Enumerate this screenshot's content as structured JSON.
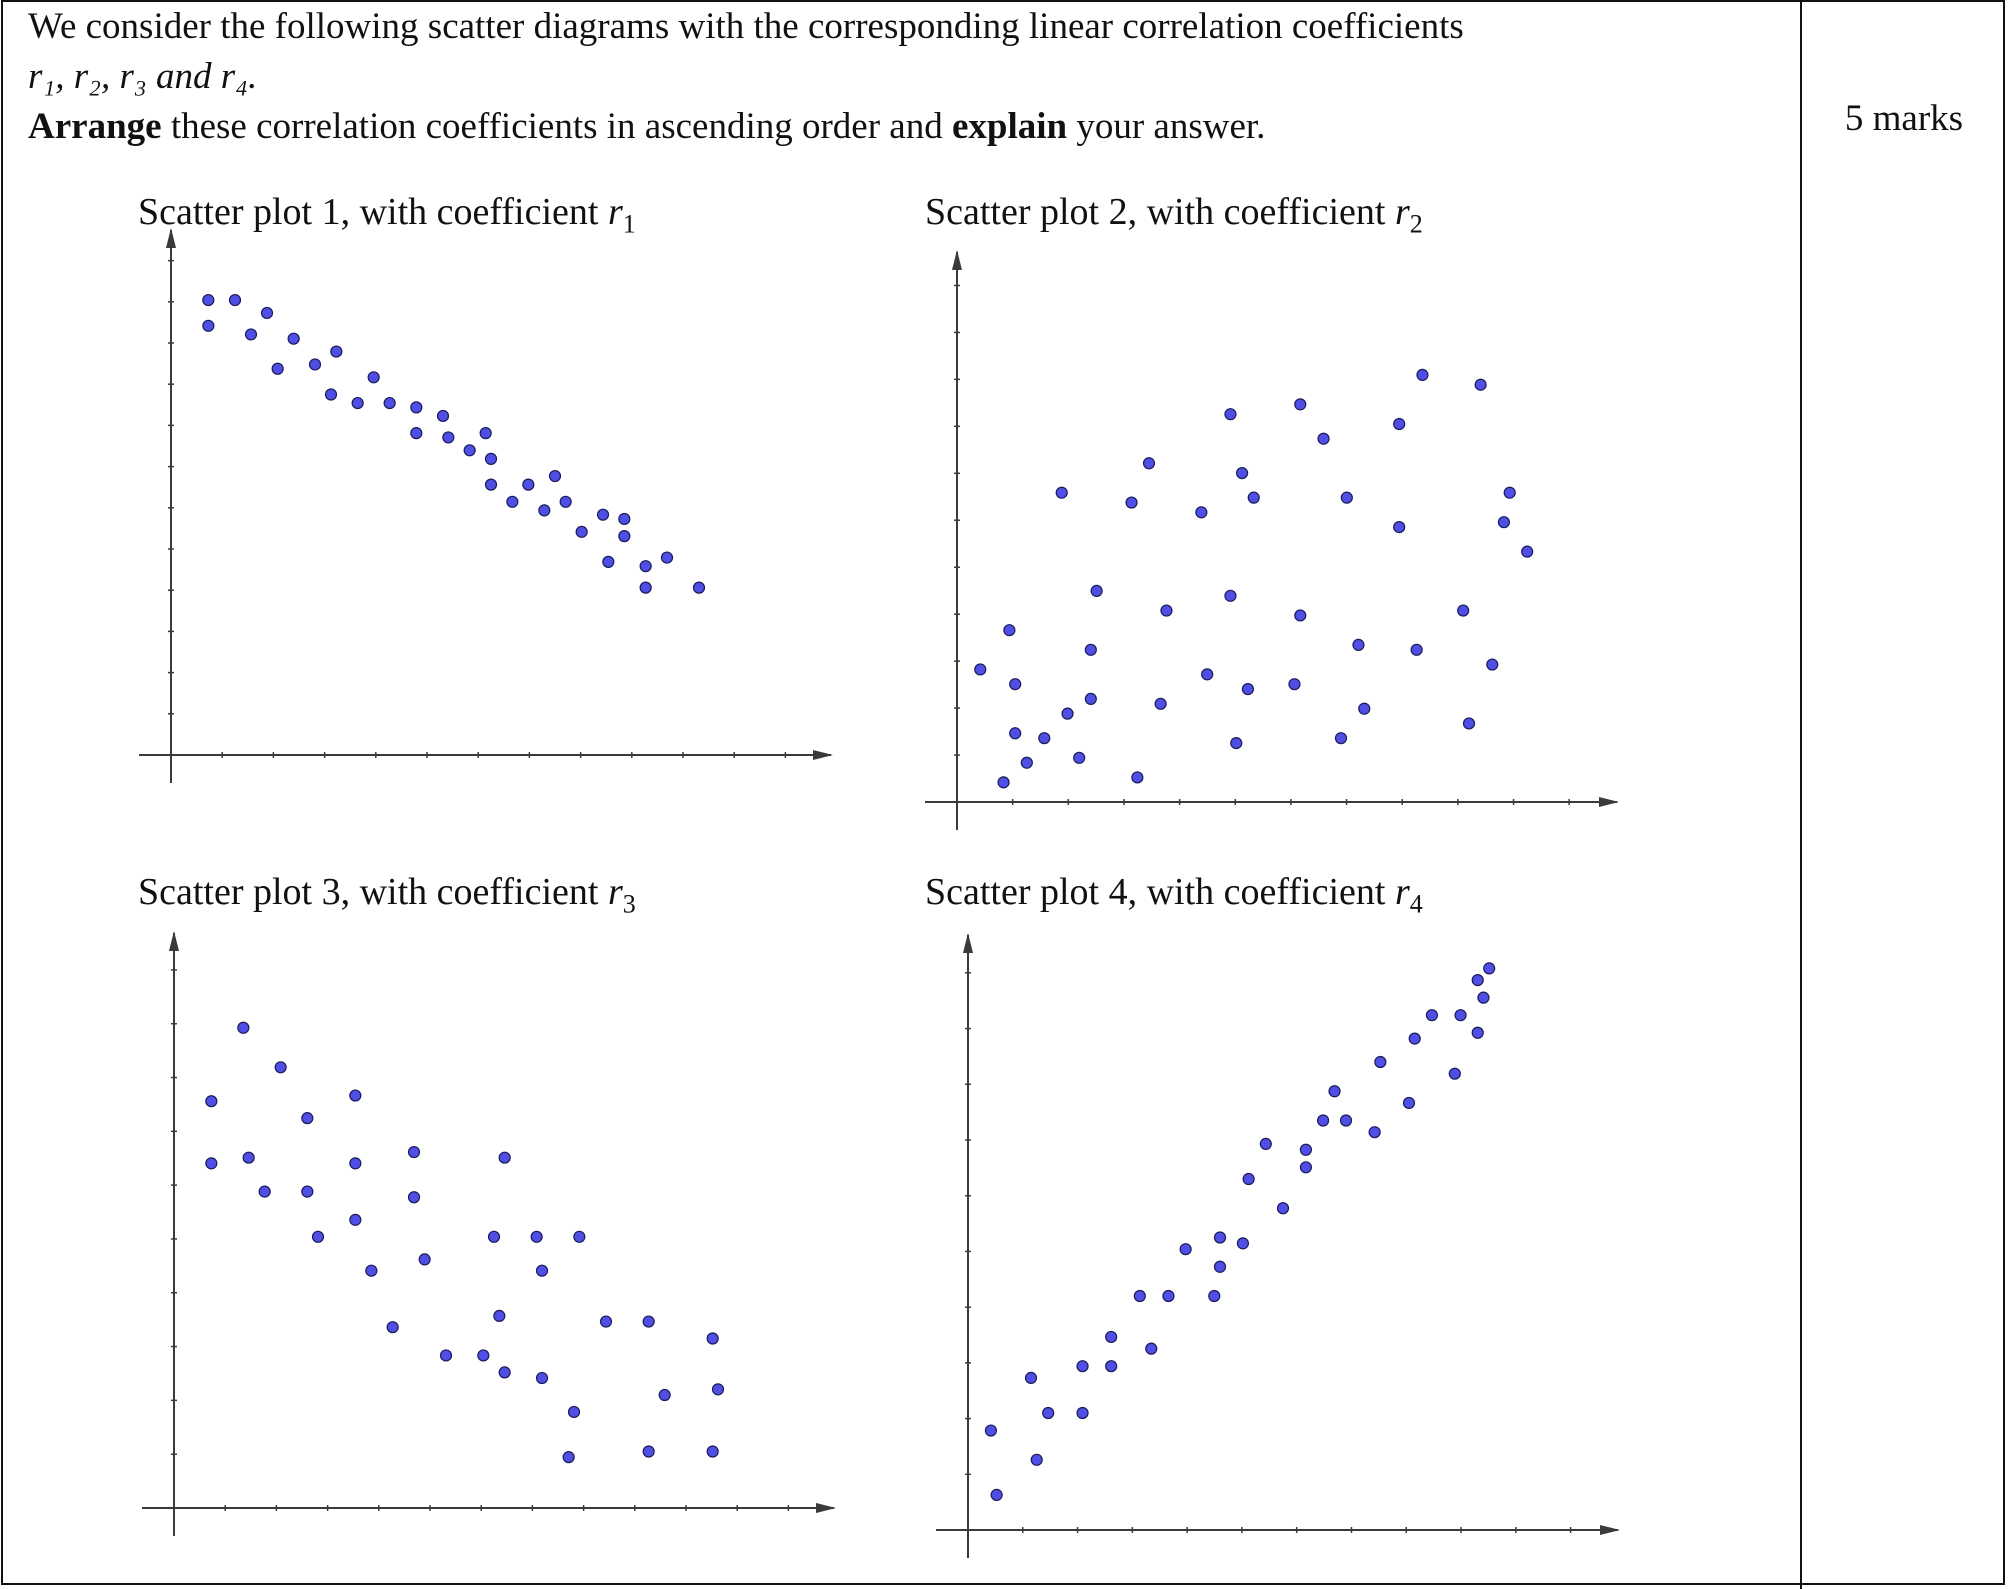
{
  "question": {
    "line1": "We consider the following scatter diagrams with the corresponding linear correlation coefficients",
    "line2": "r₁, r₂, r₃ and r₄.",
    "arrange_word": "Arrange",
    "line3_mid": " these correlation coefficients in ascending order and ",
    "explain_word": "explain",
    "line3_end": " your answer."
  },
  "marks": "5 marks",
  "plots": [
    {
      "title_prefix": "Scatter plot 1, with coefficient ",
      "coef_symbol": "r",
      "coef_sub": "1"
    },
    {
      "title_prefix": "Scatter plot 2, with coefficient ",
      "coef_symbol": "r",
      "coef_sub": "2"
    },
    {
      "title_prefix": "Scatter plot 3, with coefficient ",
      "coef_symbol": "r",
      "coef_sub": "3"
    },
    {
      "title_prefix": "Scatter plot 4, with coefficient ",
      "coef_symbol": "r",
      "coef_sub": "4"
    }
  ],
  "colors": {
    "dot": "#4f4fe6",
    "axis": "#3a3a3a"
  },
  "chart_data": [
    {
      "type": "scatter",
      "title": "Scatter plot 1, with coefficient r1",
      "xlim": [
        0,
        12
      ],
      "ylim": [
        0,
        12
      ],
      "grid": false,
      "points": [
        [
          0.7,
          10.6
        ],
        [
          1.2,
          10.6
        ],
        [
          1.8,
          10.3
        ],
        [
          0.7,
          10.0
        ],
        [
          1.5,
          9.8
        ],
        [
          2.3,
          9.7
        ],
        [
          3.1,
          9.4
        ],
        [
          2.0,
          9.0
        ],
        [
          2.7,
          9.1
        ],
        [
          3.8,
          8.8
        ],
        [
          3.0,
          8.4
        ],
        [
          3.5,
          8.2
        ],
        [
          4.1,
          8.2
        ],
        [
          4.6,
          8.1
        ],
        [
          5.1,
          7.9
        ],
        [
          4.6,
          7.5
        ],
        [
          5.2,
          7.4
        ],
        [
          5.9,
          7.5
        ],
        [
          5.6,
          7.1
        ],
        [
          6.0,
          6.9
        ],
        [
          6.0,
          6.3
        ],
        [
          6.7,
          6.3
        ],
        [
          7.2,
          6.5
        ],
        [
          6.4,
          5.9
        ],
        [
          7.0,
          5.7
        ],
        [
          7.4,
          5.9
        ],
        [
          8.1,
          5.6
        ],
        [
          7.7,
          5.2
        ],
        [
          8.5,
          5.5
        ],
        [
          8.5,
          5.1
        ],
        [
          8.2,
          4.5
        ],
        [
          8.9,
          4.4
        ],
        [
          9.3,
          4.6
        ],
        [
          8.9,
          3.9
        ],
        [
          9.9,
          3.9
        ]
      ]
    },
    {
      "type": "scatter",
      "title": "Scatter plot 2, with coefficient r2",
      "xlim": [
        0,
        11
      ],
      "ylim": [
        0,
        11
      ],
      "grid": false,
      "points": [
        [
          0.4,
          2.7
        ],
        [
          0.8,
          0.4
        ],
        [
          1.0,
          1.4
        ],
        [
          1.2,
          0.8
        ],
        [
          0.9,
          3.5
        ],
        [
          1.0,
          2.4
        ],
        [
          1.5,
          1.3
        ],
        [
          1.9,
          1.8
        ],
        [
          2.1,
          0.9
        ],
        [
          1.8,
          6.3
        ],
        [
          2.3,
          2.1
        ],
        [
          2.3,
          3.1
        ],
        [
          2.4,
          4.3
        ],
        [
          3.1,
          0.5
        ],
        [
          3.0,
          6.1
        ],
        [
          3.3,
          6.9
        ],
        [
          3.5,
          2.0
        ],
        [
          3.6,
          3.9
        ],
        [
          4.2,
          5.9
        ],
        [
          4.3,
          2.6
        ],
        [
          4.7,
          4.2
        ],
        [
          4.7,
          7.9
        ],
        [
          4.8,
          1.2
        ],
        [
          4.9,
          6.7
        ],
        [
          5.0,
          2.3
        ],
        [
          5.1,
          6.2
        ],
        [
          5.8,
          2.4
        ],
        [
          5.9,
          3.8
        ],
        [
          5.9,
          8.1
        ],
        [
          6.3,
          7.4
        ],
        [
          6.6,
          1.3
        ],
        [
          6.7,
          6.2
        ],
        [
          6.9,
          3.2
        ],
        [
          7.0,
          1.9
        ],
        [
          7.6,
          5.6
        ],
        [
          7.6,
          7.7
        ],
        [
          7.9,
          3.1
        ],
        [
          8.0,
          8.7
        ],
        [
          8.7,
          3.9
        ],
        [
          8.8,
          1.6
        ],
        [
          9.0,
          8.5
        ],
        [
          9.2,
          2.8
        ],
        [
          9.4,
          5.7
        ],
        [
          9.5,
          6.3
        ],
        [
          9.8,
          5.1
        ]
      ]
    },
    {
      "type": "scatter",
      "title": "Scatter plot 3, with coefficient r3",
      "xlim": [
        0,
        12
      ],
      "ylim": [
        0,
        10
      ],
      "grid": false,
      "points": [
        [
          0.7,
          7.2
        ],
        [
          1.3,
          8.5
        ],
        [
          2.0,
          7.8
        ],
        [
          0.7,
          6.1
        ],
        [
          1.4,
          6.2
        ],
        [
          1.7,
          5.6
        ],
        [
          2.5,
          6.9
        ],
        [
          2.5,
          5.6
        ],
        [
          2.7,
          4.8
        ],
        [
          3.4,
          7.3
        ],
        [
          3.4,
          6.1
        ],
        [
          3.4,
          5.1
        ],
        [
          3.7,
          4.2
        ],
        [
          4.1,
          3.2
        ],
        [
          4.5,
          6.3
        ],
        [
          4.5,
          5.5
        ],
        [
          4.7,
          4.4
        ],
        [
          5.1,
          2.7
        ],
        [
          5.8,
          2.7
        ],
        [
          6.0,
          4.8
        ],
        [
          6.1,
          3.4
        ],
        [
          6.2,
          6.2
        ],
        [
          6.2,
          2.4
        ],
        [
          6.8,
          4.8
        ],
        [
          6.9,
          4.2
        ],
        [
          6.9,
          2.3
        ],
        [
          7.6,
          4.8
        ],
        [
          7.5,
          1.7
        ],
        [
          7.4,
          0.9
        ],
        [
          8.1,
          3.3
        ],
        [
          8.9,
          3.3
        ],
        [
          8.9,
          1.0
        ],
        [
          9.2,
          2.0
        ],
        [
          10.1,
          3.0
        ],
        [
          10.1,
          1.0
        ],
        [
          10.2,
          2.1
        ]
      ]
    },
    {
      "type": "scatter",
      "title": "Scatter plot 4, with coefficient r4",
      "xlim": [
        0,
        11
      ],
      "ylim": [
        0,
        10
      ],
      "grid": false,
      "points": [
        [
          0.4,
          1.7
        ],
        [
          0.5,
          0.6
        ],
        [
          1.1,
          2.6
        ],
        [
          1.2,
          1.2
        ],
        [
          1.4,
          2.0
        ],
        [
          2.0,
          2.8
        ],
        [
          2.0,
          2.0
        ],
        [
          2.5,
          3.3
        ],
        [
          2.5,
          2.8
        ],
        [
          3.0,
          4.0
        ],
        [
          3.2,
          3.1
        ],
        [
          3.5,
          4.0
        ],
        [
          3.8,
          4.8
        ],
        [
          4.3,
          4.0
        ],
        [
          4.4,
          4.5
        ],
        [
          4.4,
          5.0
        ],
        [
          4.8,
          4.9
        ],
        [
          4.9,
          6.0
        ],
        [
          5.2,
          6.6
        ],
        [
          5.5,
          5.5
        ],
        [
          5.9,
          6.5
        ],
        [
          5.9,
          6.2
        ],
        [
          6.2,
          7.0
        ],
        [
          6.4,
          7.5
        ],
        [
          6.6,
          7.0
        ],
        [
          7.1,
          6.8
        ],
        [
          7.2,
          8.0
        ],
        [
          7.7,
          7.3
        ],
        [
          7.8,
          8.4
        ],
        [
          8.1,
          8.8
        ],
        [
          8.5,
          7.8
        ],
        [
          8.6,
          8.8
        ],
        [
          8.9,
          8.5
        ],
        [
          8.9,
          9.4
        ],
        [
          9.0,
          9.1
        ],
        [
          9.1,
          9.6
        ]
      ]
    }
  ]
}
